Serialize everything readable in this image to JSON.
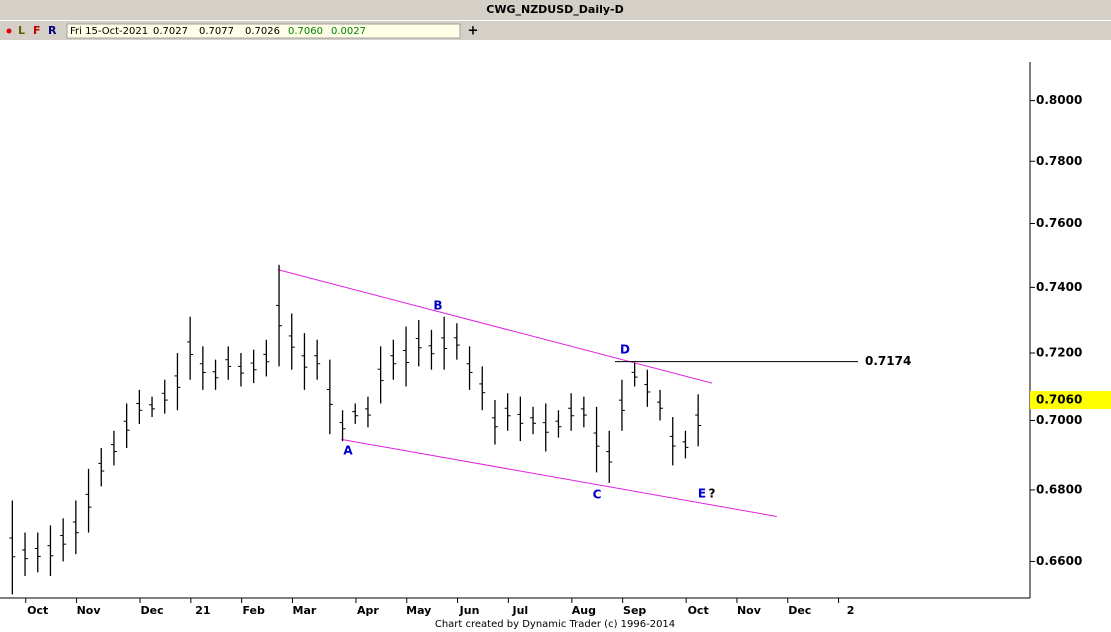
{
  "chart_data": {
    "type": "ohlc",
    "title": "CWG_NZDUSD_Daily-D",
    "info_bar": {
      "flags": [
        "L",
        "F",
        "R"
      ],
      "date": "Fri 15-Oct-2021",
      "open": "0.7027",
      "high": "0.7077",
      "low": "0.7026",
      "close": "0.7060",
      "change": "0.0027",
      "add": "+"
    },
    "footer": "Chart created by Dynamic Trader  (c)  1996-2014",
    "log_scale": true,
    "color": "#000000",
    "categories": [
      null,
      null,
      "Oct",
      null,
      null,
      null,
      "Nov",
      null,
      null,
      null,
      null,
      "Dec",
      null,
      null,
      null,
      "21",
      null,
      null,
      null,
      "Feb",
      null,
      null,
      null,
      "Mar",
      null,
      null,
      null,
      null,
      "Apr",
      null,
      null,
      null,
      "May",
      null,
      null,
      null,
      "Jun",
      null,
      null,
      null,
      "Jul",
      null,
      null,
      null,
      null,
      "Aug",
      null,
      null,
      null,
      "Sep",
      null,
      null,
      null,
      null,
      "Oct",
      null,
      null,
      null,
      "Nov",
      null,
      null,
      null,
      "Dec",
      null,
      null,
      null,
      "2",
      null,
      null,
      null,
      null,
      null,
      null,
      null,
      null,
      null,
      null,
      null,
      null,
      null
    ],
    "high": [
      0.677,
      0.668,
      0.668,
      0.67,
      0.672,
      0.677,
      0.686,
      0.692,
      0.697,
      0.705,
      0.709,
      0.707,
      0.712,
      0.72,
      0.731,
      0.722,
      0.718,
      0.722,
      0.72,
      0.721,
      0.724,
      0.747,
      0.732,
      0.726,
      0.724,
      0.718,
      0.703,
      0.705,
      0.707,
      0.722,
      0.724,
      0.728,
      0.73,
      0.727,
      0.731,
      0.729,
      0.722,
      0.716,
      0.706,
      0.708,
      0.707,
      0.704,
      0.705,
      0.703,
      0.708,
      0.707,
      0.704,
      0.697,
      0.712,
      0.717,
      0.715,
      0.709,
      0.701,
      0.697,
      0.7077,
      null,
      null,
      null,
      null,
      null,
      null,
      null,
      null,
      null,
      null,
      null,
      null,
      null,
      null,
      null,
      null,
      null,
      null,
      null,
      null,
      null,
      null,
      null,
      null,
      null
    ],
    "low": [
      0.651,
      0.656,
      0.657,
      0.656,
      0.66,
      0.662,
      0.668,
      0.681,
      0.687,
      0.692,
      0.699,
      0.701,
      0.702,
      0.703,
      0.712,
      0.709,
      0.709,
      0.712,
      0.71,
      0.711,
      0.713,
      0.716,
      0.715,
      0.709,
      0.712,
      0.696,
      0.694,
      0.699,
      0.698,
      0.705,
      0.712,
      0.71,
      0.716,
      0.715,
      0.715,
      0.718,
      0.709,
      0.703,
      0.693,
      0.697,
      0.694,
      0.696,
      0.691,
      0.695,
      0.697,
      0.698,
      0.685,
      0.682,
      0.697,
      0.71,
      0.704,
      0.7,
      0.687,
      0.689,
      0.6925,
      null,
      null,
      null,
      null,
      null,
      null,
      null,
      null,
      null,
      null,
      null,
      null,
      null,
      null,
      null,
      null,
      null,
      null,
      null,
      null,
      null,
      null,
      null,
      null,
      null
    ],
    "ylim": [
      0.65,
      0.813
    ],
    "yticks": [
      {
        "value": 0.66,
        "label": "0.6600"
      },
      {
        "value": 0.68,
        "label": "0.6800"
      },
      {
        "value": 0.7,
        "label": "0.7000"
      },
      {
        "value": 0.72,
        "label": "0.7200"
      },
      {
        "value": 0.74,
        "label": "0.7400"
      },
      {
        "value": 0.76,
        "label": "0.7600"
      },
      {
        "value": 0.78,
        "label": "0.7800"
      },
      {
        "value": 0.8,
        "label": "0.8000"
      }
    ],
    "last_price": {
      "value": 0.706,
      "label": "0.7060"
    },
    "level": 0.7174,
    "trendlines": [
      {
        "from": [
          20.9,
          0.7455
        ],
        "to": [
          55.1,
          0.711
        ],
        "color": "#e020e0"
      },
      {
        "from": [
          25.9,
          0.6945
        ],
        "to": [
          60.2,
          0.6725
        ],
        "color": "#e020e0"
      }
    ],
    "annotations": [
      "A",
      "B",
      "C",
      "D",
      "E",
      "?"
    ]
  }
}
